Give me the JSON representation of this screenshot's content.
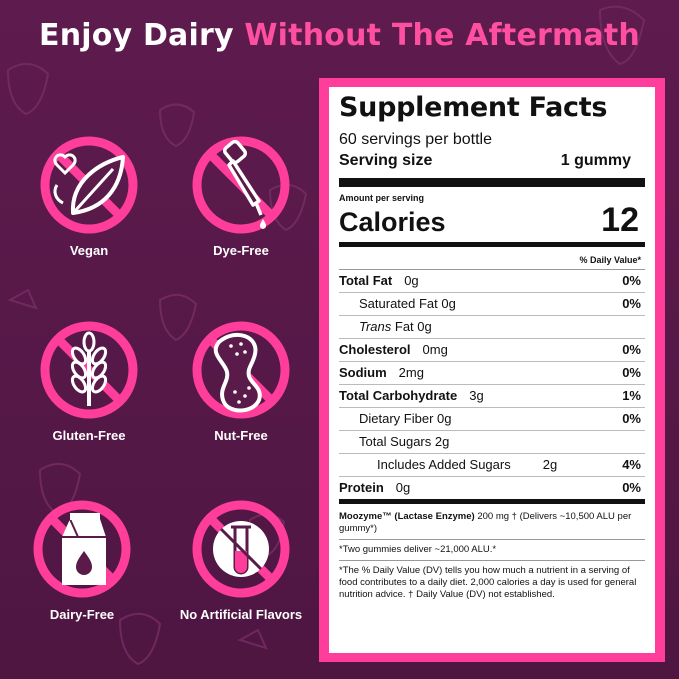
{
  "headline": {
    "white_part": "Enjoy Dairy",
    "pink_part": "Without The Aftermath"
  },
  "colors": {
    "background": "#5a1a4a",
    "accent_pink": "#ff3d9a",
    "panel_white": "#ffffff"
  },
  "badges": [
    {
      "label": "Vegan",
      "icon": "leaf-heart-icon"
    },
    {
      "label": "Dye-Free",
      "icon": "dropper-icon"
    },
    {
      "label": "Gluten-Free",
      "icon": "wheat-icon"
    },
    {
      "label": "Nut-Free",
      "icon": "peanut-icon"
    },
    {
      "label": "Dairy-Free",
      "icon": "milk-carton-icon"
    },
    {
      "label": "No Artificial Flavors",
      "icon": "test-tube-icon"
    }
  ],
  "facts": {
    "title": "Supplement Facts",
    "servings_per": "60 servings per bottle",
    "serving_size_label": "Serving size",
    "serving_size_value": "1 gummy",
    "amount_per_serving": "Amount per serving",
    "calories_label": "Calories",
    "calories_value": "12",
    "dv_header": "% Daily Value*",
    "rows": {
      "total_fat": {
        "label": "Total Fat",
        "amount": "0g",
        "dv": "0%"
      },
      "saturated_fat": {
        "label": "Saturated Fat 0g",
        "dv": "0%"
      },
      "trans_fat": {
        "label_italic": "Trans",
        "label_rest": " Fat 0g"
      },
      "cholesterol": {
        "label": "Cholesterol",
        "amount": "0mg",
        "dv": "0%"
      },
      "sodium": {
        "label": "Sodium",
        "amount": "2mg",
        "dv": "0%"
      },
      "total_carb": {
        "label": "Total Carbohydrate",
        "amount": "3g",
        "dv": "1%"
      },
      "dietary_fiber": {
        "label": "Dietary Fiber 0g",
        "dv": "0%"
      },
      "total_sugars": {
        "label": "Total Sugars 2g"
      },
      "added_sugars": {
        "label": "Includes Added Sugars",
        "amount": "2g",
        "dv": "4%"
      },
      "protein": {
        "label": "Protein",
        "amount": "0g",
        "dv": "0%"
      }
    },
    "moozyme_name": "Moozyme™ (Lactase Enzyme)",
    "moozyme_detail": " 200 mg † (Delivers ~10,500 ALU per gummy*)",
    "two_gummies": "*Two gummies deliver ~21,000 ALU.*",
    "dv_note": "*The % Daily Value (DV) tells you how much a nutrient in a serving of food contributes to a daily diet. 2,000 calories a day is used for general nutrition advice. † Daily Value (DV) not established."
  }
}
